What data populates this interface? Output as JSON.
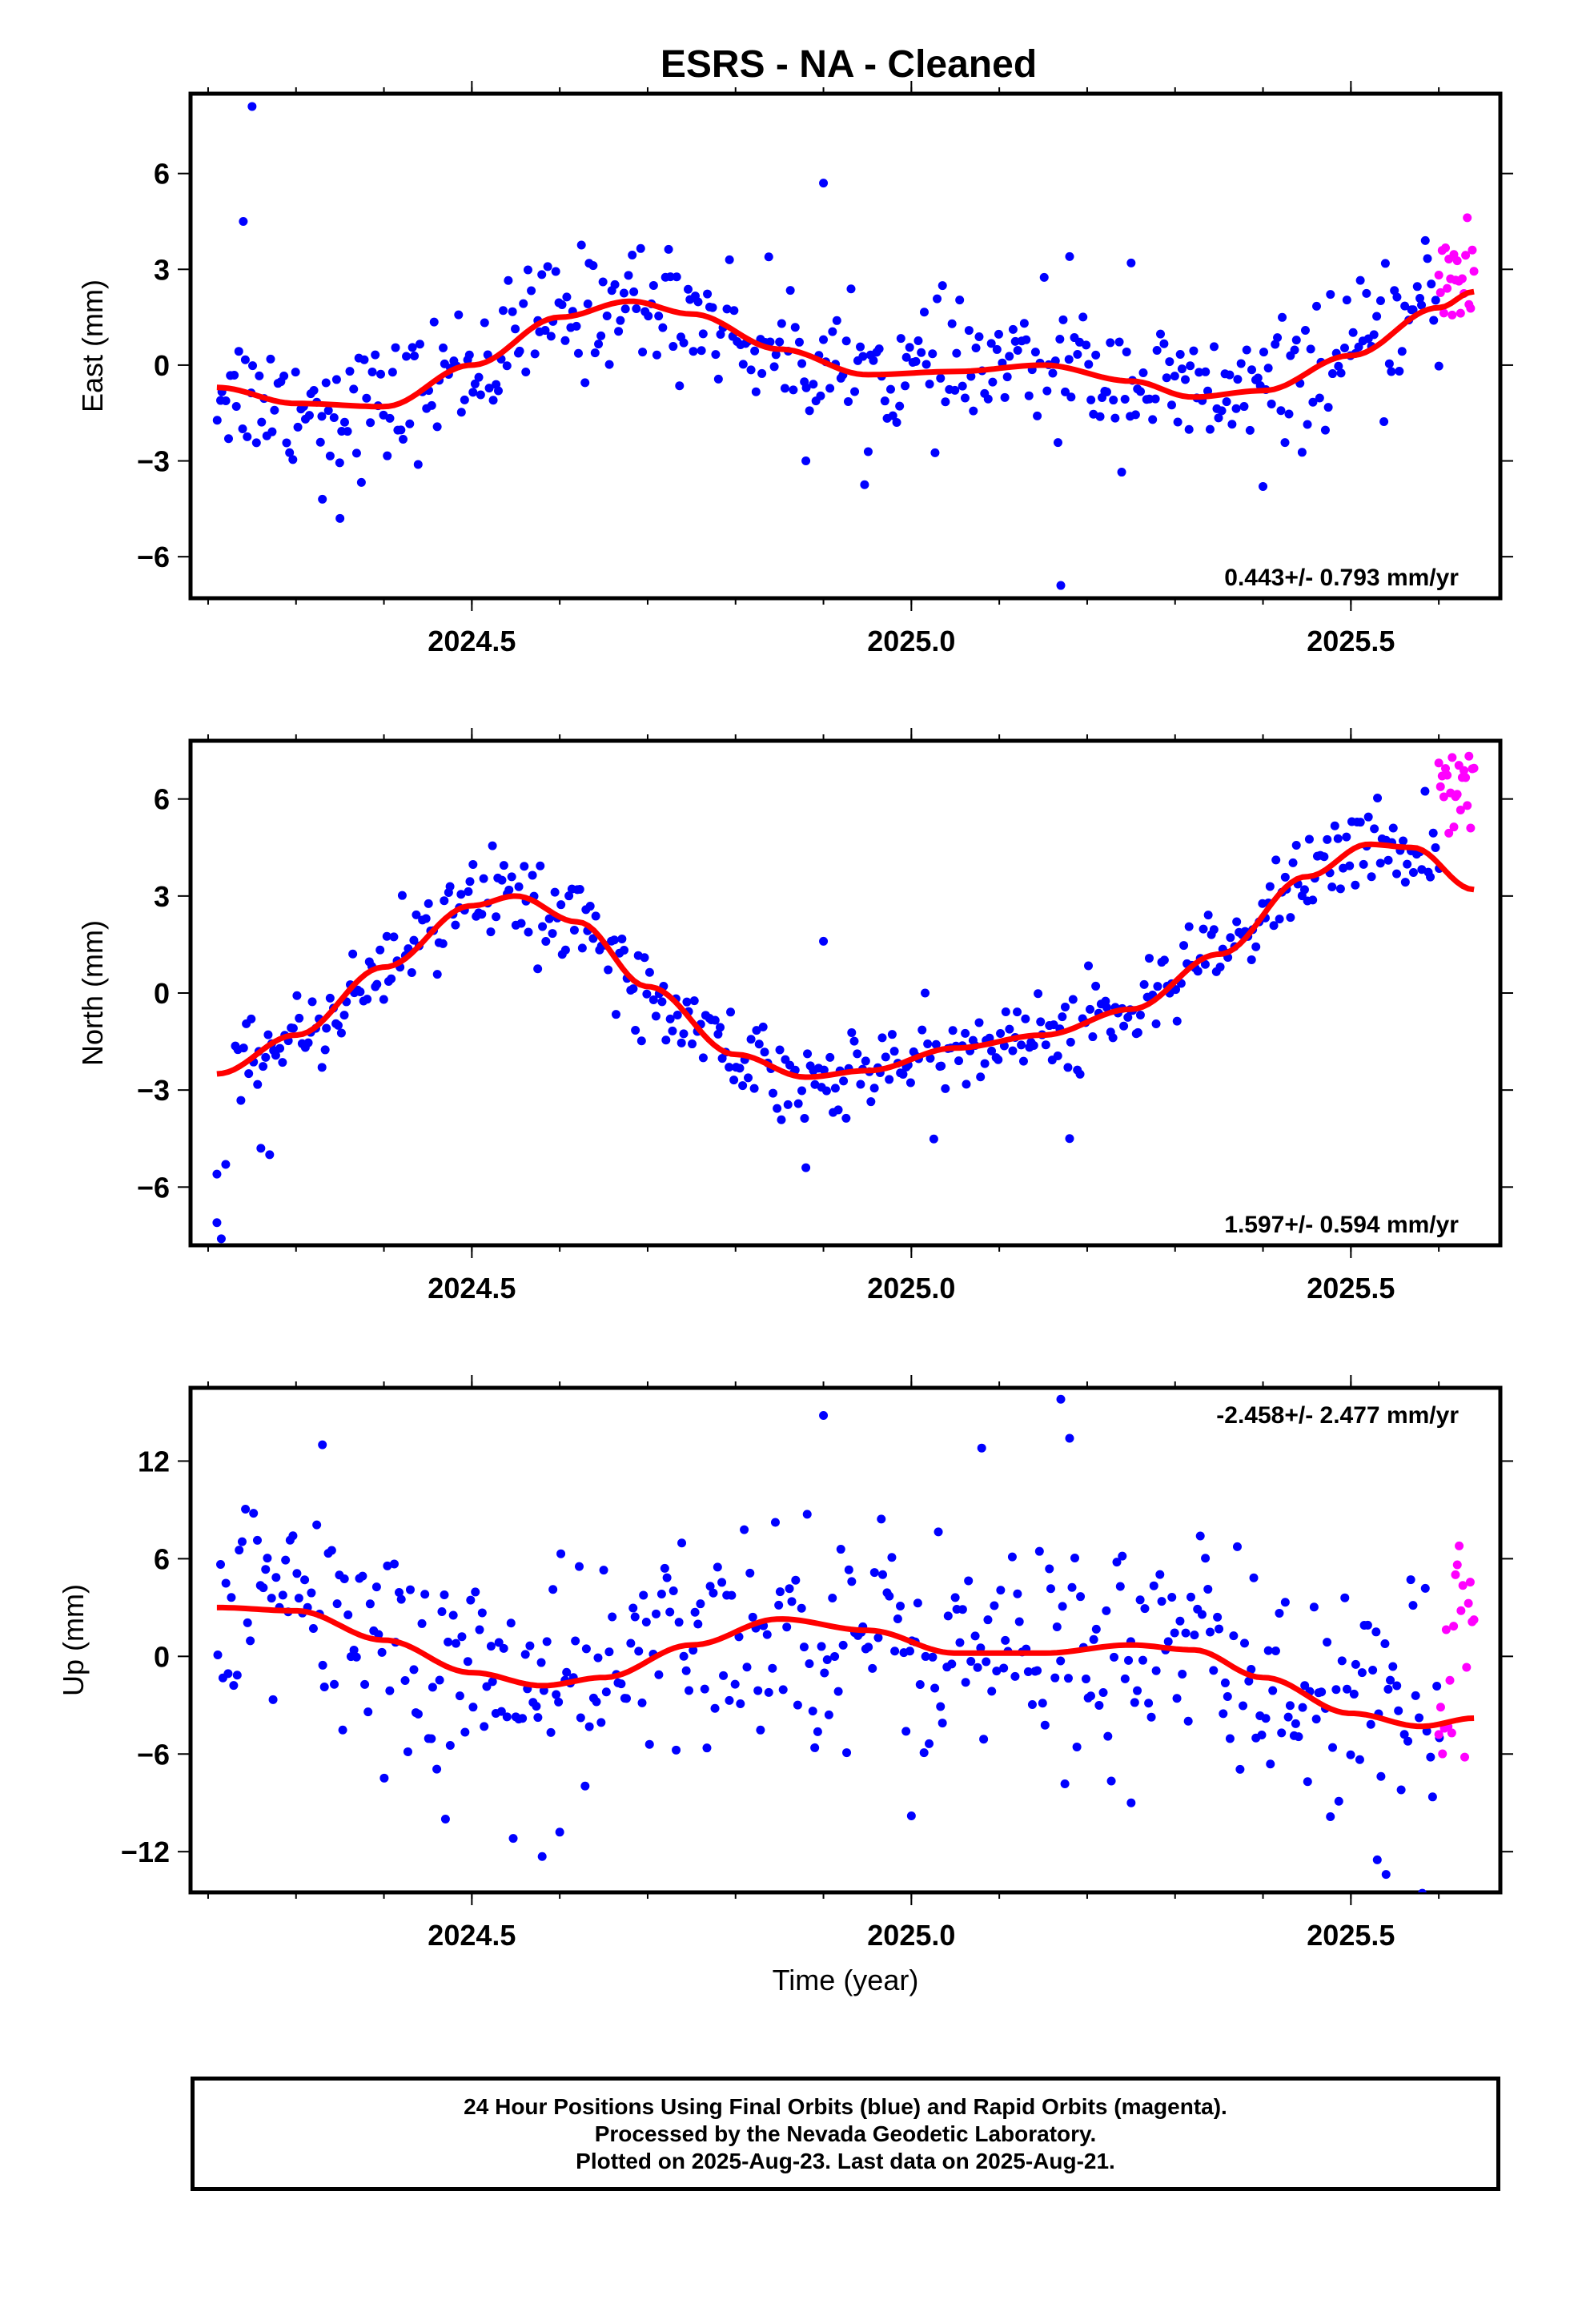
{
  "title": "ESRS  - NA - Cleaned",
  "colors": {
    "final": "#0000ff",
    "rapid": "#ff00ff",
    "fit": "#ff0000"
  },
  "chart_data": [
    {
      "type": "scatter",
      "ylabel": "East (mm)",
      "rate": "0.443+/- 0.793 mm/yr",
      "rate_position": "bottom-right",
      "xlim": [
        2024.18,
        2025.67
      ],
      "ylim": [
        -7.3,
        8.5
      ],
      "xticks": [
        2024.5,
        2025.0,
        2025.5
      ],
      "xticklabels": [
        "2024.5",
        "2025.0",
        "2025.5"
      ],
      "yticks": [
        -6,
        -3,
        0,
        3,
        6
      ],
      "yticklabels": [
        "−6",
        "−3",
        "0",
        "3",
        "6"
      ],
      "fit": {
        "x": [
          2024.21,
          2024.3,
          2024.4,
          2024.5,
          2024.6,
          2024.68,
          2024.75,
          2024.85,
          2024.95,
          2025.05,
          2025.15,
          2025.25,
          2025.32,
          2025.4,
          2025.5,
          2025.6,
          2025.64
        ],
        "y": [
          -0.7,
          -1.2,
          -1.3,
          0.0,
          1.5,
          2.0,
          1.6,
          0.5,
          -0.3,
          -0.2,
          0.0,
          -0.5,
          -1.0,
          -0.8,
          0.3,
          1.8,
          2.3
        ]
      },
      "outliers": [
        [
          2024.25,
          8.1
        ],
        [
          2024.24,
          4.5
        ],
        [
          2024.9,
          5.7
        ],
        [
          2025.17,
          -6.9
        ],
        [
          2024.88,
          -3.0
        ],
        [
          2024.35,
          -4.8
        ],
        [
          2024.33,
          -4.2
        ],
        [
          2025.4,
          -3.8
        ],
        [
          2025.18,
          3.4
        ],
        [
          2025.25,
          3.2
        ]
      ],
      "final": {
        "x_start": 2024.21,
        "x_end": 2025.6,
        "n": 440,
        "noise": 1.1
      },
      "rapid": {
        "x_start": 2025.6,
        "x_end": 2025.64,
        "y_mean": 3.0,
        "spread": 3.5,
        "n": 22
      }
    },
    {
      "type": "scatter",
      "ylabel": "North (mm)",
      "rate": "1.597+/- 0.594 mm/yr",
      "rate_position": "bottom-right",
      "xlim": [
        2024.18,
        2025.67
      ],
      "ylim": [
        -7.8,
        7.8
      ],
      "xticks": [
        2024.5,
        2025.0,
        2025.5
      ],
      "xticklabels": [
        "2024.5",
        "2025.0",
        "2025.5"
      ],
      "yticks": [
        -6,
        -3,
        0,
        3,
        6
      ],
      "yticklabels": [
        "−6",
        "−3",
        "0",
        "3",
        "6"
      ],
      "fit": {
        "x": [
          2024.21,
          2024.3,
          2024.4,
          2024.5,
          2024.55,
          2024.62,
          2024.7,
          2024.8,
          2024.88,
          2024.95,
          2025.05,
          2025.15,
          2025.25,
          2025.35,
          2025.45,
          2025.52,
          2025.57,
          2025.64
        ],
        "y": [
          -2.5,
          -1.3,
          0.8,
          2.7,
          3.0,
          2.2,
          0.2,
          -1.9,
          -2.6,
          -2.4,
          -1.7,
          -1.3,
          -0.5,
          1.2,
          3.6,
          4.6,
          4.5,
          3.2
        ]
      },
      "outliers": [
        [
          2024.21,
          -7.1
        ],
        [
          2024.215,
          -7.6
        ],
        [
          2024.22,
          -5.3
        ],
        [
          2024.21,
          -5.6
        ],
        [
          2024.26,
          -4.8
        ],
        [
          2024.27,
          -5.0
        ],
        [
          2025.18,
          -4.5
        ],
        [
          2024.9,
          1.6
        ],
        [
          2024.88,
          -5.4
        ]
      ],
      "final": {
        "x_start": 2024.23,
        "x_end": 2025.6,
        "n": 430,
        "noise": 0.75
      },
      "rapid": {
        "x_start": 2025.6,
        "x_end": 2025.64,
        "y_mean": 6.2,
        "spread": 2.6,
        "n": 22
      }
    },
    {
      "type": "scatter",
      "ylabel": "Up (mm)",
      "xlabel": "Time (year)",
      "rate": "-2.458+/- 2.477 mm/yr",
      "rate_position": "top-right",
      "xlim": [
        2024.18,
        2025.67
      ],
      "ylim": [
        -14.5,
        16.5
      ],
      "xticks": [
        2024.5,
        2025.0,
        2025.5
      ],
      "xticklabels": [
        "2024.5",
        "2025.0",
        "2025.5"
      ],
      "yticks": [
        -12,
        -6,
        0,
        6,
        12
      ],
      "yticklabels": [
        "−12",
        "−6",
        "0",
        "6",
        "12"
      ],
      "fit": {
        "x": [
          2024.21,
          2024.3,
          2024.4,
          2024.5,
          2024.58,
          2024.65,
          2024.75,
          2024.85,
          2024.95,
          2025.05,
          2025.15,
          2025.25,
          2025.32,
          2025.4,
          2025.5,
          2025.58,
          2025.64
        ],
        "y": [
          3.0,
          2.8,
          1.0,
          -1.0,
          -1.8,
          -1.3,
          0.7,
          2.3,
          1.6,
          0.2,
          0.2,
          0.7,
          0.4,
          -1.3,
          -3.5,
          -4.3,
          -3.8
        ]
      },
      "outliers": [
        [
          2024.9,
          14.8
        ],
        [
          2025.17,
          15.8
        ],
        [
          2025.18,
          13.4
        ],
        [
          2024.33,
          13.0
        ],
        [
          2025.08,
          12.8
        ],
        [
          2024.58,
          -12.3
        ],
        [
          2025.54,
          -13.4
        ],
        [
          2025.53,
          -12.5
        ],
        [
          2024.6,
          -10.8
        ],
        [
          2024.47,
          -10.0
        ],
        [
          2025.0,
          -9.8
        ],
        [
          2025.25,
          -9.0
        ]
      ],
      "final": {
        "x_start": 2024.21,
        "x_end": 2025.6,
        "n": 430,
        "noise": 3.8
      },
      "rapid": {
        "x_start": 2025.6,
        "x_end": 2025.64,
        "y_mean": 0.5,
        "spread": 14.0,
        "n": 20
      }
    }
  ],
  "footer": {
    "line1": "24 Hour Positions Using Final Orbits (blue) and Rapid Orbits (magenta).",
    "line2": "Processed by the Nevada Geodetic Laboratory.",
    "line3": "Plotted on 2025-Aug-23. Last data on 2025-Aug-21."
  }
}
